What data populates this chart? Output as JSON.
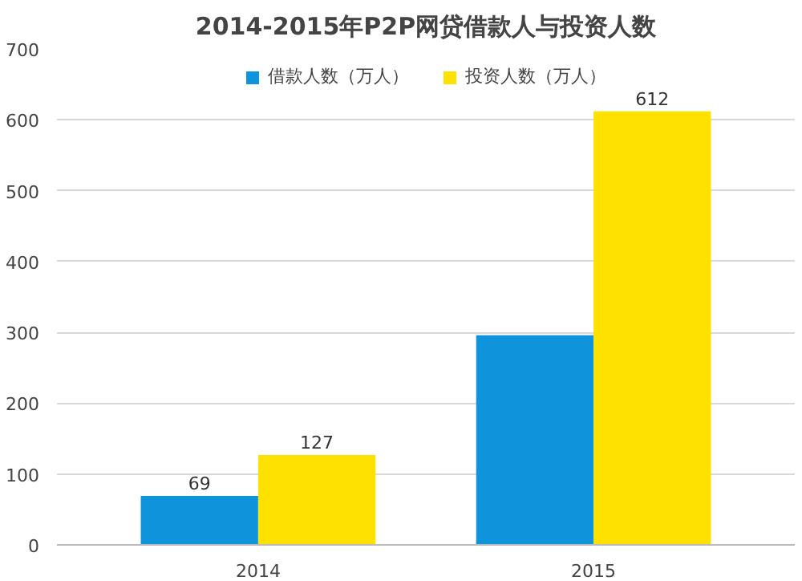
{
  "chart_data": {
    "type": "bar",
    "title": "2014-2015年P2P网贷借款人与投资人数",
    "categories": [
      "2014",
      "2015"
    ],
    "series": [
      {
        "name": "借款人数（万人）",
        "color": "#0f94dc",
        "values": [
          69,
          296
        ],
        "value_labels": [
          "69",
          null
        ]
      },
      {
        "name": "投资人数（万人）",
        "color": "#ffe100",
        "values": [
          127,
          612
        ],
        "value_labels": [
          "127",
          "612"
        ]
      }
    ],
    "ylim": [
      0,
      700
    ],
    "yticks": [
      0,
      100,
      200,
      300,
      400,
      500,
      600,
      700
    ],
    "grid": "y",
    "legend": "top"
  }
}
